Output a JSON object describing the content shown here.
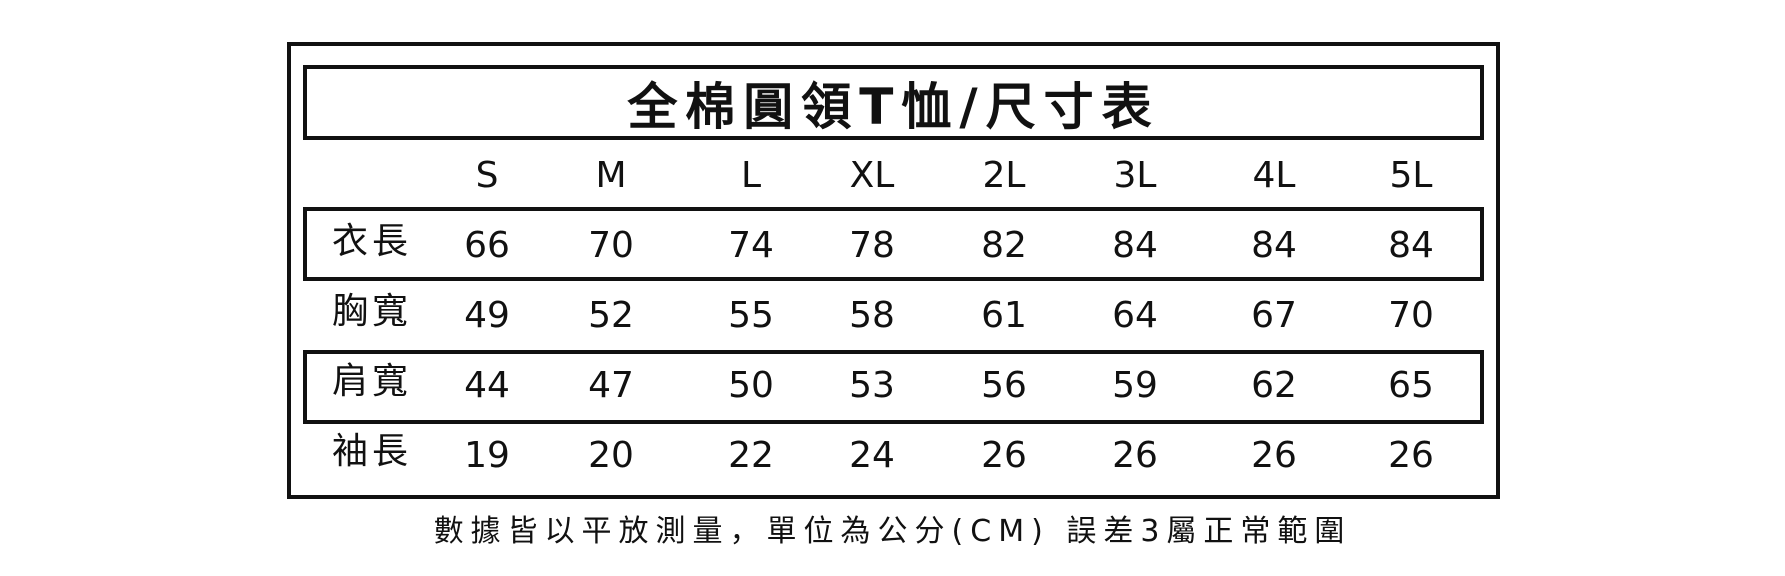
{
  "title": "全棉圓領T恤/尺寸表",
  "sizes": [
    "S",
    "M",
    "L",
    "XL",
    "2L",
    "3L",
    "4L",
    "5L"
  ],
  "rows": [
    {
      "label": "衣長",
      "values": [
        "66",
        "70",
        "74",
        "78",
        "82",
        "84",
        "84",
        "84"
      ],
      "boxed": true
    },
    {
      "label": "胸寬",
      "values": [
        "49",
        "52",
        "55",
        "58",
        "61",
        "64",
        "67",
        "70"
      ],
      "boxed": false
    },
    {
      "label": "肩寬",
      "values": [
        "44",
        "47",
        "50",
        "53",
        "56",
        "59",
        "62",
        "65"
      ],
      "boxed": true
    },
    {
      "label": "袖長",
      "values": [
        "19",
        "20",
        "22",
        "24",
        "26",
        "26",
        "26",
        "26"
      ],
      "boxed": false
    }
  ],
  "footer": "數據皆以平放測量，單位為公分(CM) 誤差3屬正常範圍"
}
